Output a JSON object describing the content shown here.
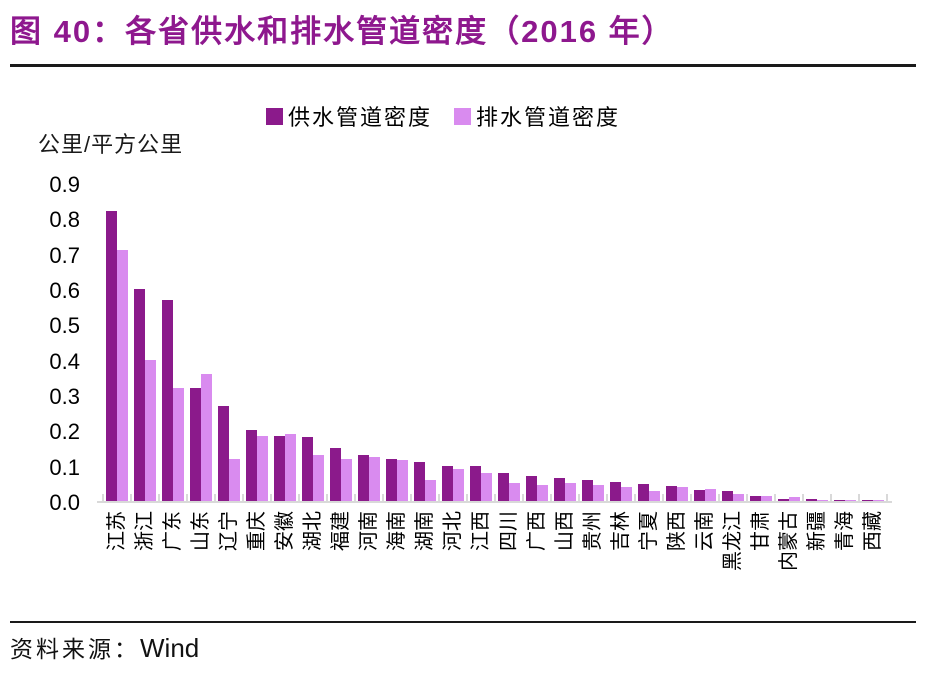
{
  "header": {
    "title": "图 40：各省供水和排水管道密度（2016 年）",
    "title_color": "#8E188E"
  },
  "footer": {
    "source_label": "资料来源：",
    "source_value": "Wind"
  },
  "chart_data": {
    "type": "bar",
    "title": "各省供水和排水管道密度（2016年）",
    "unit_label": "公里/平方公里",
    "ylabel": "公里/平方公里",
    "xlabel": "",
    "ylim": [
      0,
      0.9
    ],
    "yticks": [
      0,
      0.1,
      0.2,
      0.3,
      0.4,
      0.5,
      0.6,
      0.7,
      0.8,
      0.9
    ],
    "grid": false,
    "legend_position": "top",
    "axis_color": "#D9D9D9",
    "categories": [
      "江苏",
      "浙江",
      "广东",
      "山东",
      "辽宁",
      "重庆",
      "安徽",
      "湖北",
      "福建",
      "河南",
      "海南",
      "湖南",
      "河北",
      "江西",
      "四川",
      "广西",
      "山西",
      "贵州",
      "吉林",
      "宁夏",
      "陕西",
      "云南",
      "黑龙江",
      "甘肃",
      "内蒙古",
      "新疆",
      "青海",
      "西藏"
    ],
    "series": [
      {
        "name": "供水管道密度",
        "color": "#8B1A8B",
        "values": [
          0.82,
          0.6,
          0.57,
          0.32,
          0.27,
          0.2,
          0.185,
          0.18,
          0.15,
          0.13,
          0.12,
          0.11,
          0.1,
          0.1,
          0.08,
          0.07,
          0.065,
          0.06,
          0.055,
          0.048,
          0.042,
          0.032,
          0.028,
          0.014,
          0.006,
          0.005,
          0.003,
          0.002
        ]
      },
      {
        "name": "排水管道密度",
        "color": "#D98BEF",
        "values": [
          0.71,
          0.4,
          0.32,
          0.36,
          0.12,
          0.185,
          0.19,
          0.13,
          0.12,
          0.125,
          0.115,
          0.06,
          0.09,
          0.08,
          0.05,
          0.045,
          0.05,
          0.045,
          0.04,
          0.028,
          0.04,
          0.035,
          0.02,
          0.014,
          0.011,
          0.004,
          0.002,
          0.001
        ]
      }
    ]
  }
}
